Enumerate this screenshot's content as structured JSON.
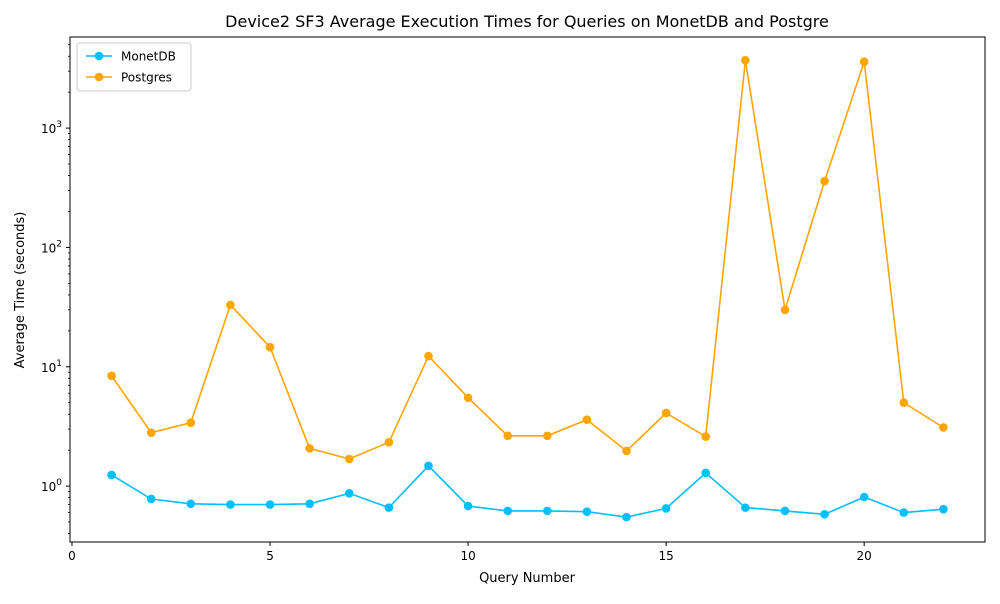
{
  "chart_data": {
    "type": "line",
    "title": "Device2 SF3 Average Execution Times for Queries on MonetDB and Postgre",
    "xlabel": "Query Number",
    "ylabel": "Average Time (seconds)",
    "xlim": [
      -0.05,
      23.05
    ],
    "ylim": [
      0.34,
      5800
    ],
    "yscale": "log",
    "legend_position": "top-left",
    "grid": false,
    "x": [
      1,
      2,
      3,
      4,
      5,
      6,
      7,
      8,
      9,
      10,
      11,
      12,
      13,
      14,
      15,
      16,
      17,
      18,
      19,
      20,
      21,
      22
    ],
    "series": [
      {
        "name": "MonetDB",
        "color": "#00BFFF",
        "marker": "circle",
        "values": [
          1.24,
          0.78,
          0.71,
          0.7,
          0.7,
          0.71,
          0.87,
          0.66,
          1.48,
          0.68,
          0.62,
          0.62,
          0.61,
          0.55,
          0.65,
          1.29,
          0.66,
          0.62,
          0.58,
          0.81,
          0.6,
          0.64
        ]
      },
      {
        "name": "Postgres",
        "color": "#FFA500",
        "marker": "circle",
        "values": [
          8.4,
          2.8,
          3.4,
          33,
          14.6,
          2.07,
          1.69,
          2.33,
          12.3,
          5.5,
          2.64,
          2.64,
          3.6,
          1.97,
          4.1,
          2.6,
          3700,
          30,
          360,
          3600,
          5.0,
          3.1
        ]
      }
    ],
    "xticks": [
      {
        "value": 0,
        "label": "0"
      },
      {
        "value": 5,
        "label": "5"
      },
      {
        "value": 10,
        "label": "10"
      },
      {
        "value": 15,
        "label": "15"
      },
      {
        "value": 20,
        "label": "20"
      }
    ],
    "yticks_major": [
      {
        "value": 1,
        "base": "10",
        "exp": "0"
      },
      {
        "value": 10,
        "base": "10",
        "exp": "1"
      },
      {
        "value": 100,
        "base": "10",
        "exp": "2"
      },
      {
        "value": 1000,
        "base": "10",
        "exp": "3"
      }
    ]
  }
}
